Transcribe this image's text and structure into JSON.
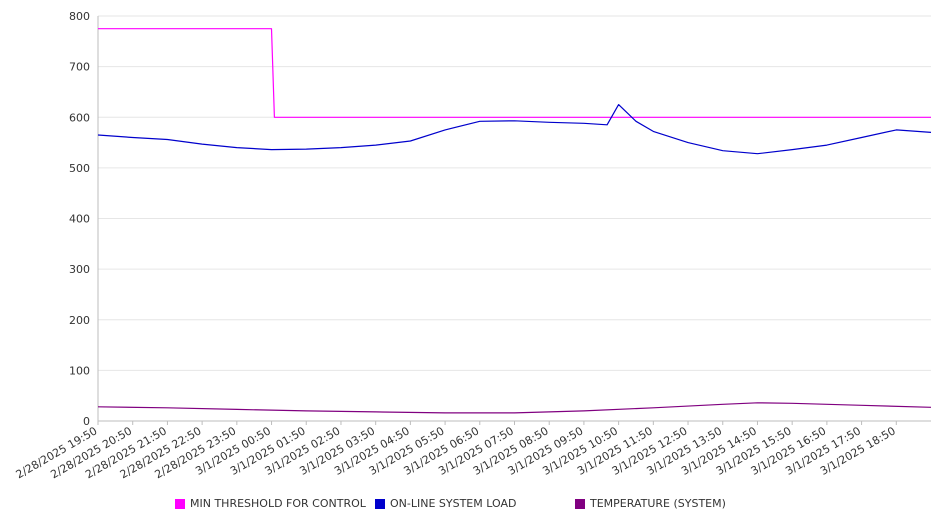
{
  "chart_data": {
    "type": "line",
    "title": "",
    "xlabel": "",
    "ylabel": "",
    "ylim": [
      0,
      800
    ],
    "yticks": [
      0,
      100,
      200,
      300,
      400,
      500,
      600,
      700,
      800
    ],
    "grid": true,
    "legend_position": "bottom",
    "x_tick_labels": [
      "2/28/2025 19:50",
      "2/28/2025 20:50",
      "2/28/2025 21:50",
      "2/28/2025 22:50",
      "2/28/2025 23:50",
      "3/1/2025 00:50",
      "3/1/2025 01:50",
      "3/1/2025 02:50",
      "3/1/2025 03:50",
      "3/1/2025 04:50",
      "3/1/2025 05:50",
      "3/1/2025 06:50",
      "3/1/2025 07:50",
      "3/1/2025 08:50",
      "3/1/2025 09:50",
      "3/1/2025 10:50",
      "3/1/2025 11:50",
      "3/1/2025 12:50",
      "3/1/2025 13:50",
      "3/1/2025 14:50",
      "3/1/2025 15:50",
      "3/1/2025 16:50",
      "3/1/2025 17:50",
      "3/1/2025 18:50"
    ],
    "x_start": "2/28/2025 19:50",
    "x_end": "3/1/2025 19:50",
    "series": [
      {
        "name": "MIN THRESHOLD FOR CONTROL",
        "color": "#ff00ff",
        "points": [
          [
            "2/28/2025 19:50",
            775
          ],
          [
            "3/1/2025 00:50",
            775
          ],
          [
            "3/1/2025 00:55",
            600
          ],
          [
            "3/1/2025 19:50",
            600
          ]
        ]
      },
      {
        "name": "ON-LINE SYSTEM LOAD",
        "color": "#0000cc",
        "points": [
          [
            "2/28/2025 19:50",
            565
          ],
          [
            "2/28/2025 20:50",
            560
          ],
          [
            "2/28/2025 21:50",
            556
          ],
          [
            "2/28/2025 22:50",
            547
          ],
          [
            "2/28/2025 23:50",
            540
          ],
          [
            "3/1/2025 00:50",
            536
          ],
          [
            "3/1/2025 01:50",
            537
          ],
          [
            "3/1/2025 02:50",
            540
          ],
          [
            "3/1/2025 03:50",
            545
          ],
          [
            "3/1/2025 04:50",
            553
          ],
          [
            "3/1/2025 05:50",
            575
          ],
          [
            "3/1/2025 06:50",
            592
          ],
          [
            "3/1/2025 07:50",
            593
          ],
          [
            "3/1/2025 08:50",
            590
          ],
          [
            "3/1/2025 09:50",
            588
          ],
          [
            "3/1/2025 10:30",
            585
          ],
          [
            "3/1/2025 10:50",
            625
          ],
          [
            "3/1/2025 11:20",
            592
          ],
          [
            "3/1/2025 11:50",
            572
          ],
          [
            "3/1/2025 12:50",
            550
          ],
          [
            "3/1/2025 13:50",
            534
          ],
          [
            "3/1/2025 14:50",
            528
          ],
          [
            "3/1/2025 15:50",
            536
          ],
          [
            "3/1/2025 16:50",
            545
          ],
          [
            "3/1/2025 17:50",
            560
          ],
          [
            "3/1/2025 18:50",
            575
          ],
          [
            "3/1/2025 19:50",
            570
          ]
        ]
      },
      {
        "name": "TEMPERATURE (SYSTEM)",
        "color": "#800080",
        "points": [
          [
            "2/28/2025 19:50",
            28
          ],
          [
            "2/28/2025 21:50",
            26
          ],
          [
            "2/28/2025 23:50",
            23
          ],
          [
            "3/1/2025 01:50",
            20
          ],
          [
            "3/1/2025 03:50",
            18
          ],
          [
            "3/1/2025 05:50",
            16
          ],
          [
            "3/1/2025 07:50",
            16
          ],
          [
            "3/1/2025 09:50",
            20
          ],
          [
            "3/1/2025 11:50",
            26
          ],
          [
            "3/1/2025 13:50",
            33
          ],
          [
            "3/1/2025 14:50",
            36
          ],
          [
            "3/1/2025 15:50",
            35
          ],
          [
            "3/1/2025 17:50",
            31
          ],
          [
            "3/1/2025 19:50",
            27
          ]
        ]
      }
    ]
  }
}
